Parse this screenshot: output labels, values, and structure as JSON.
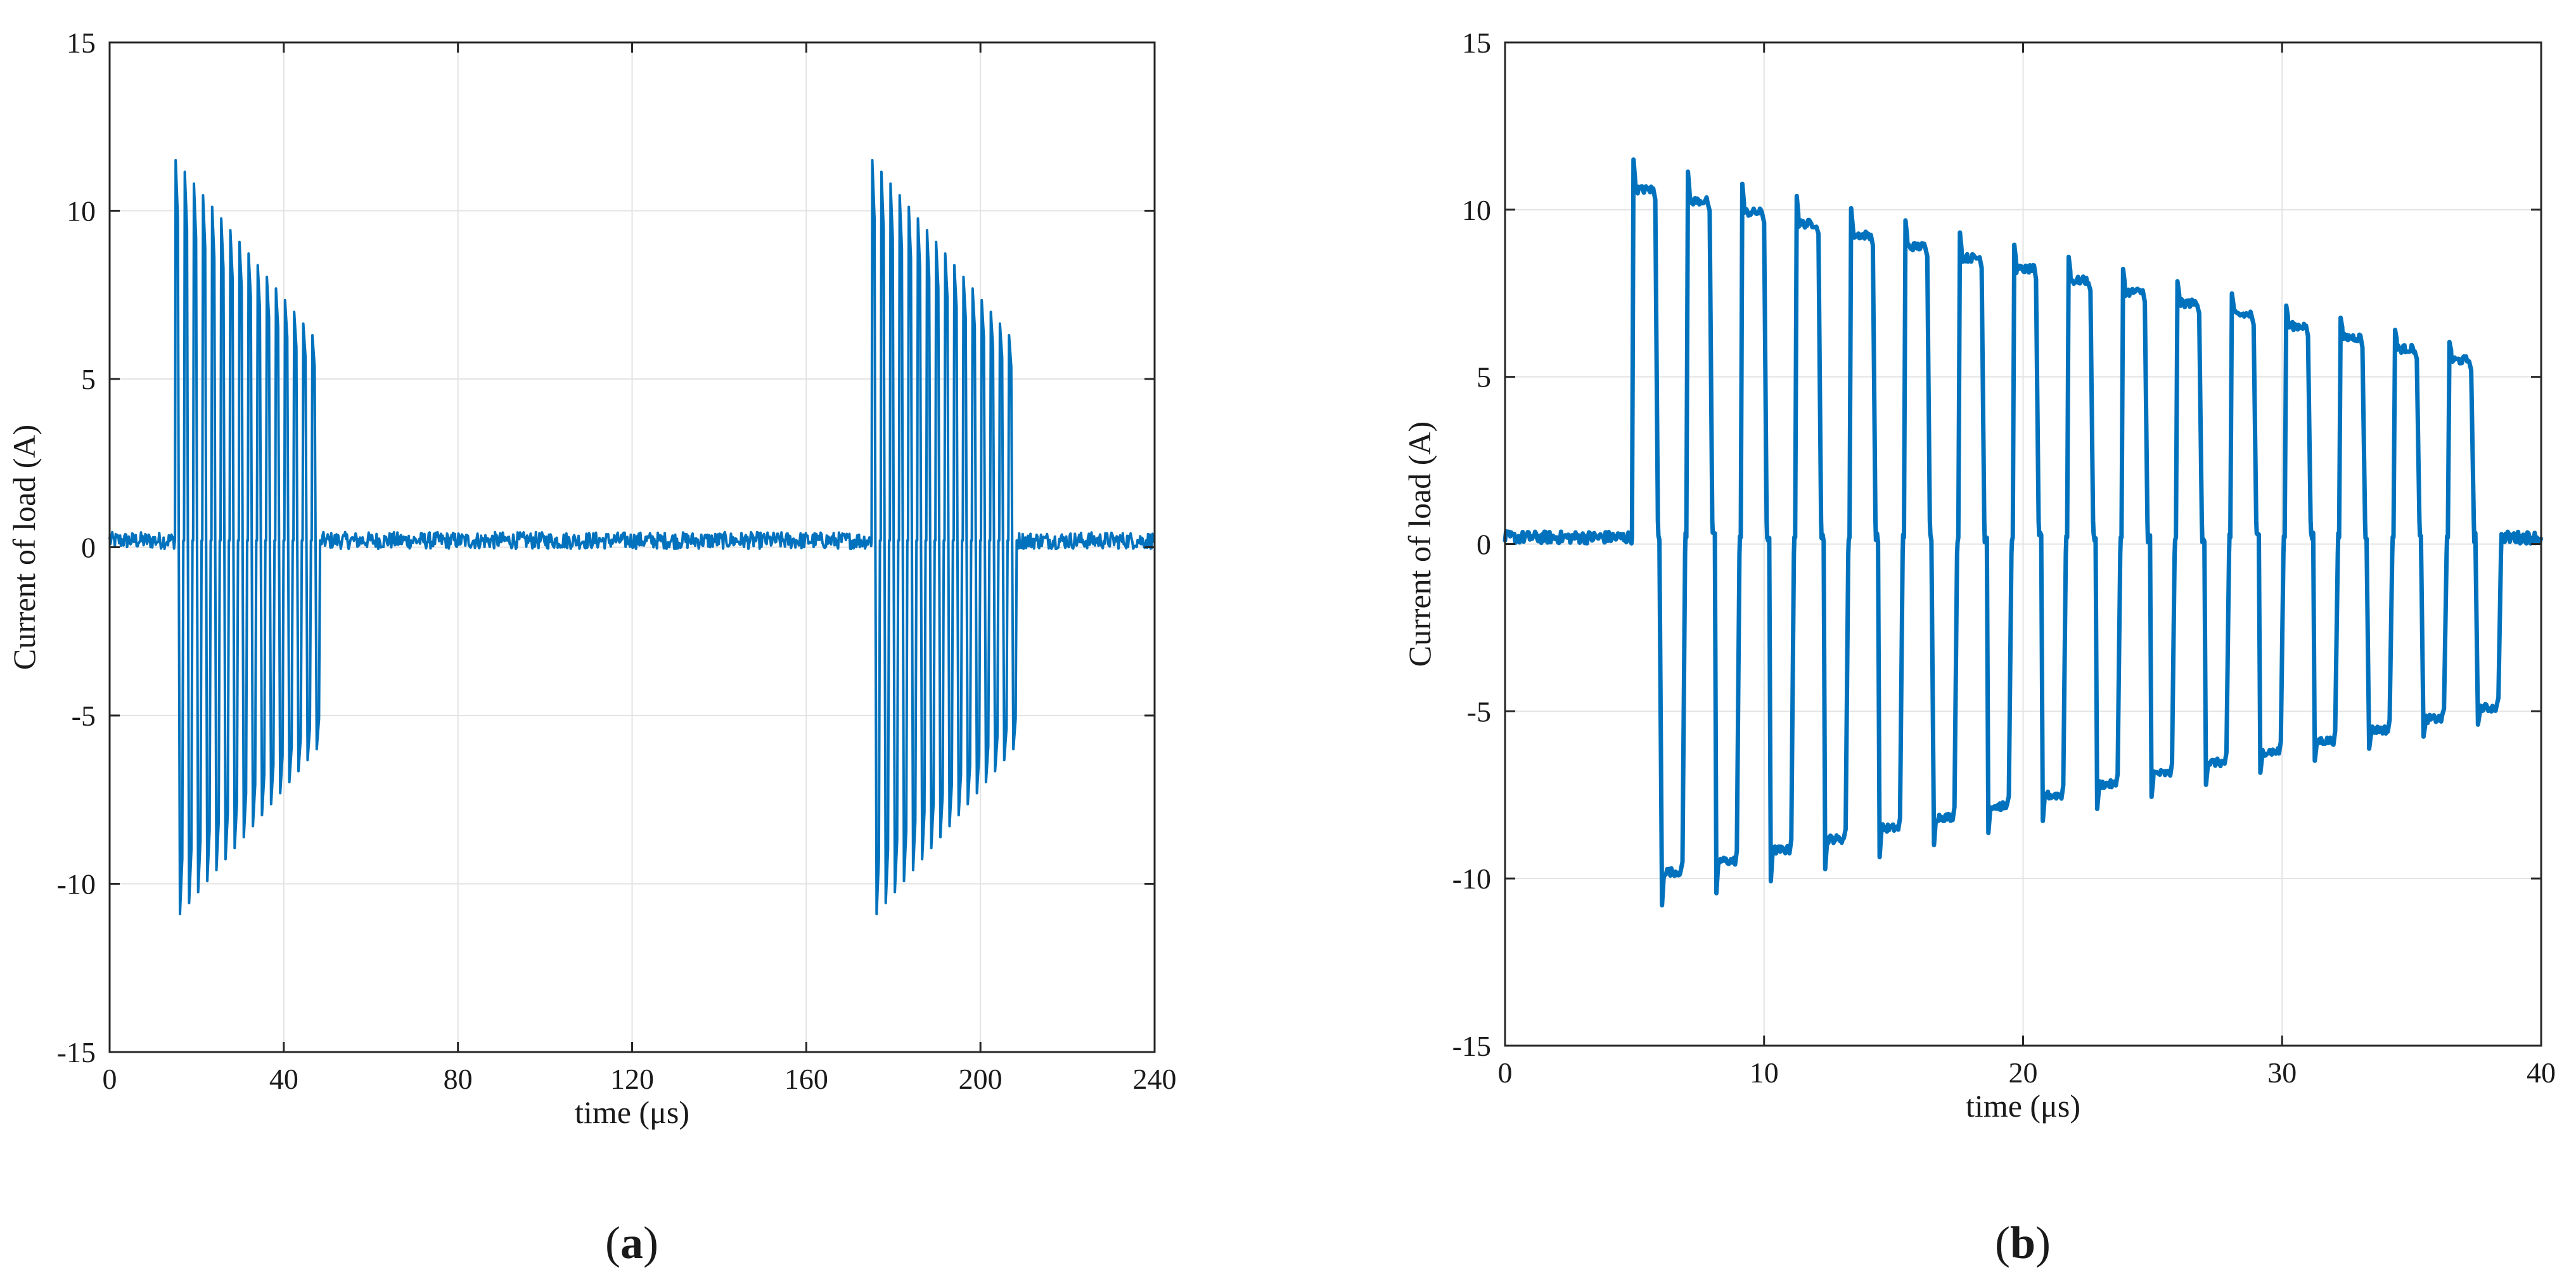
{
  "chart_data": [
    {
      "type": "line",
      "panel_label": "a",
      "xlabel": "time (μs)",
      "ylabel": "Current of load (A)",
      "xlim": [
        0,
        240
      ],
      "ylim": [
        -15,
        15
      ],
      "xticks": [
        0,
        40,
        80,
        120,
        160,
        200,
        240
      ],
      "yticks": [
        15,
        10,
        5,
        0,
        -5,
        -10,
        -15
      ],
      "grid": true,
      "line_color": "#0072BD",
      "series": [
        {
          "bursts": [
            {
              "start": 15,
              "end": 48.5,
              "pulse_count": 16
            },
            {
              "start": 175,
              "end": 208.5,
              "pulse_count": 16
            }
          ],
          "positive_peak_first": 11.5,
          "positive_peak_last": 6.3,
          "negative_peak_first": -10.9,
          "negative_peak_last": -6.0,
          "baseline": 0.2
        }
      ]
    },
    {
      "type": "line",
      "panel_label": "b",
      "xlabel": "time (μs)",
      "ylabel": "Current of load (A)",
      "xlim": [
        0,
        40
      ],
      "ylim": [
        -15,
        15
      ],
      "xticks": [
        0,
        10,
        20,
        30,
        40
      ],
      "yticks": [
        15,
        10,
        5,
        0,
        -5,
        -10,
        -15
      ],
      "grid": true,
      "line_color": "#0072BD",
      "series": [
        {
          "period": 2.1,
          "first_pulse_start": 4.9,
          "positive_duration": 0.95,
          "negative_start_offset": 1.1,
          "negative_duration": 0.9,
          "pulse_count": 16,
          "positive_peak_first": 11.5,
          "positive_plateau_first": 10.6,
          "positive_plateau_last": 5.5,
          "negative_plateau_first": -9.8,
          "negative_plateau_last": -4.9,
          "baseline": 0.2
        }
      ]
    }
  ]
}
